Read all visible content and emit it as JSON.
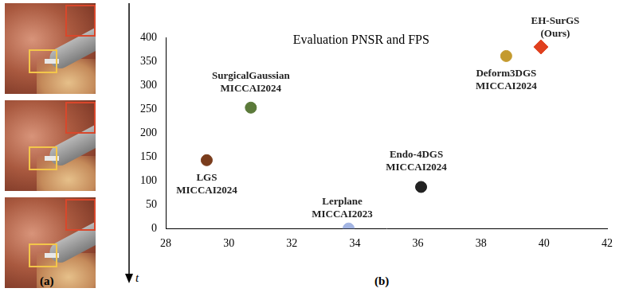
{
  "figure": {
    "panel_a": {
      "label": "(a)",
      "time_axis_label": "t",
      "frames": 3
    },
    "panel_b": {
      "label": "(b)"
    }
  },
  "chart_data": {
    "type": "scatter",
    "title": "Evaluation PNSR and FPS",
    "xlim": [
      28,
      42
    ],
    "xticks": [
      28,
      30,
      32,
      34,
      36,
      38,
      40,
      42
    ],
    "ylim": [
      0,
      400
    ],
    "yticks": [
      0,
      50,
      100,
      150,
      200,
      250,
      300,
      350,
      400
    ],
    "grid": false,
    "series": [
      {
        "name": [
          "LGS",
          "MICCAI2024"
        ],
        "color": "#7a3c1c",
        "marker": "circle",
        "x": [
          29.3
        ],
        "values": [
          143
        ]
      },
      {
        "name": [
          "SurgicalGaussian",
          "MICCAI2024"
        ],
        "color": "#5b7a3a",
        "marker": "circle",
        "x": [
          30.7
        ],
        "values": [
          253
        ]
      },
      {
        "name": [
          "Lerplane",
          "MICCAI2023"
        ],
        "color": "#a3b5e3",
        "marker": "circle",
        "x": [
          33.8
        ],
        "values": [
          0
        ]
      },
      {
        "name": [
          "Endo-4DGS",
          "MICCAI2024"
        ],
        "color": "#222222",
        "marker": "circle",
        "x": [
          36.1
        ],
        "values": [
          87
        ]
      },
      {
        "name": [
          "Deform3DGS",
          "MICCAI2024"
        ],
        "color": "#c49a2e",
        "marker": "circle",
        "x": [
          38.8
        ],
        "values": [
          361
        ]
      },
      {
        "name": [
          "EH-SurGS",
          "(Ours)"
        ],
        "color": "#e0401e",
        "marker": "diamond",
        "x": [
          39.9
        ],
        "values": [
          380
        ]
      }
    ]
  }
}
